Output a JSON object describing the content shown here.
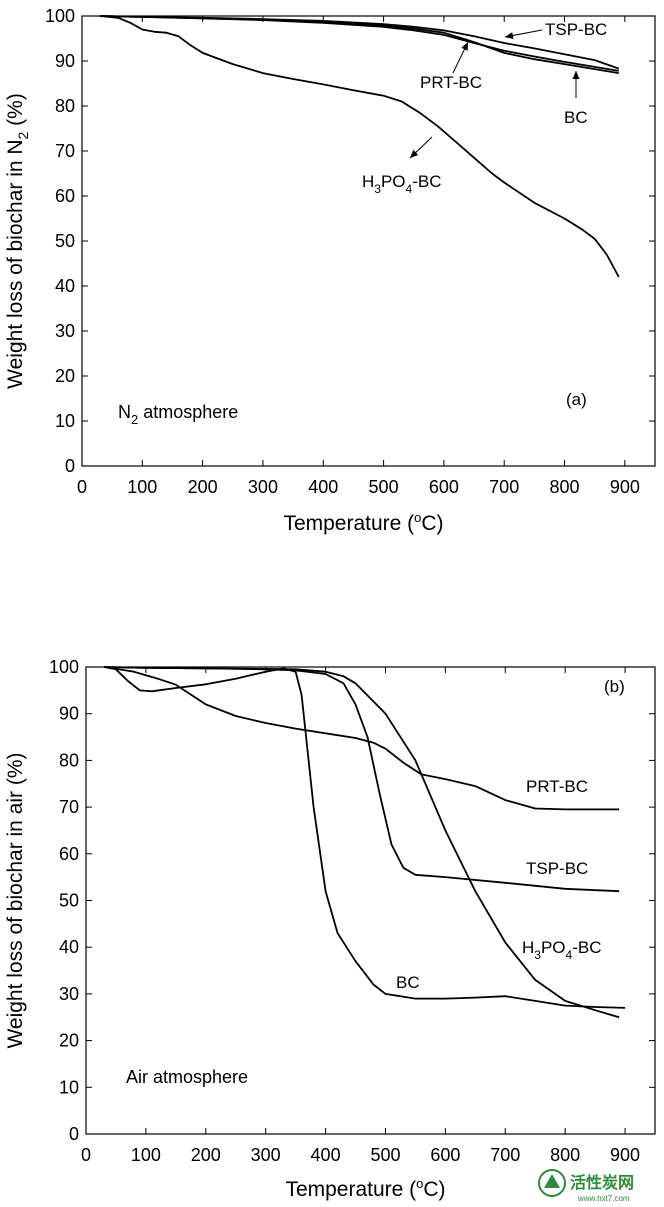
{
  "chart_data": [
    {
      "type": "line",
      "panel_label": "(a)",
      "atmosphere": "N",
      "atmosphere_sub": "2",
      "atmosphere_rest": " atmosphere",
      "xlabel": "Temperature (",
      "xlabel_sup": "o",
      "xlabel_end": "C)",
      "ylabel": "Weight loss of biochar in N",
      "ylabel_sub": "2",
      "ylabel_end": " (%)",
      "xlim": [
        0,
        950
      ],
      "ylim": [
        0,
        100
      ],
      "xticks": [
        0,
        100,
        200,
        300,
        400,
        500,
        600,
        700,
        800,
        900
      ],
      "yticks": [
        0,
        10,
        20,
        30,
        40,
        50,
        60,
        70,
        80,
        90,
        100
      ],
      "series": [
        {
          "name": "TSP-BC",
          "x": [
            30,
            100,
            200,
            300,
            400,
            500,
            550,
            600,
            650,
            700,
            750,
            800,
            850,
            890
          ],
          "y": [
            100,
            99.8,
            99.6,
            99.3,
            98.9,
            98.2,
            97.6,
            96.8,
            95.5,
            94,
            92.8,
            91.5,
            90.2,
            88.3
          ]
        },
        {
          "name": "PRT-BC",
          "x": [
            30,
            100,
            200,
            300,
            400,
            500,
            550,
            600,
            650,
            700,
            750,
            800,
            850,
            890
          ],
          "y": [
            100,
            99.8,
            99.5,
            99.1,
            98.5,
            97.6,
            96.8,
            95.8,
            94,
            92.3,
            91,
            89.8,
            88.7,
            87.8
          ]
        },
        {
          "name": "BC",
          "x": [
            30,
            100,
            200,
            300,
            400,
            500,
            550,
            600,
            650,
            700,
            750,
            800,
            850,
            890
          ],
          "y": [
            100,
            99.8,
            99.5,
            99.2,
            98.7,
            97.9,
            97.2,
            96.3,
            94.2,
            91.8,
            90.4,
            89.3,
            88.2,
            87.3
          ]
        },
        {
          "name": "H",
          "x": [
            30,
            60,
            80,
            100,
            120,
            140,
            160,
            180,
            200,
            250,
            300,
            350,
            400,
            450,
            500,
            530,
            560,
            590,
            620,
            650,
            680,
            700,
            750,
            800,
            830,
            850,
            870,
            890
          ],
          "y": [
            100,
            99.6,
            98.5,
            97,
            96.5,
            96.3,
            95.5,
            93.5,
            91.8,
            89.3,
            87.3,
            86,
            84.8,
            83.5,
            82.3,
            81,
            78.5,
            75.5,
            72,
            68.5,
            65,
            63,
            58.5,
            55,
            52.5,
            50.5,
            47,
            42
          ]
        }
      ],
      "labels": [
        {
          "text": "TSP-BC"
        },
        {
          "text": "PRT-BC"
        },
        {
          "text": "BC"
        },
        {
          "text": "H",
          "sub1": "3",
          "mid": "PO",
          "sub2": "4",
          "end": "-BC"
        }
      ]
    },
    {
      "type": "line",
      "panel_label": "(b)",
      "atmosphere": "Air atmosphere",
      "xlabel": "Temperature (",
      "xlabel_sup": "o",
      "xlabel_end": "C)",
      "ylabel": "Weight loss of biochar in air (%)",
      "xlim": [
        0,
        950
      ],
      "ylim": [
        0,
        100
      ],
      "xticks": [
        0,
        100,
        200,
        300,
        400,
        500,
        600,
        700,
        800,
        900
      ],
      "yticks": [
        0,
        10,
        20,
        30,
        40,
        50,
        60,
        70,
        80,
        90,
        100
      ],
      "series": [
        {
          "name": "PRT-BC",
          "x": [
            30,
            80,
            120,
            150,
            200,
            250,
            300,
            350,
            400,
            450,
            480,
            500,
            530,
            560,
            600,
            650,
            700,
            750,
            800,
            850,
            890
          ],
          "y": [
            100,
            99,
            97.5,
            96.2,
            92,
            89.5,
            88,
            86.8,
            85.8,
            84.8,
            83.8,
            82.5,
            79.5,
            77,
            76,
            74.5,
            71.5,
            69.7,
            69.5,
            69.5,
            69.5
          ]
        },
        {
          "name": "TSP-BC",
          "x": [
            30,
            100,
            200,
            300,
            350,
            400,
            430,
            450,
            470,
            490,
            510,
            530,
            550,
            600,
            700,
            800,
            890
          ],
          "y": [
            100,
            99.8,
            99.7,
            99.5,
            99.3,
            98.5,
            96.5,
            92,
            85,
            73,
            62,
            57,
            55.5,
            55,
            53.8,
            52.5,
            52
          ]
        },
        {
          "name": "H",
          "x": [
            30,
            100,
            200,
            300,
            350,
            400,
            430,
            450,
            500,
            550,
            600,
            650,
            700,
            750,
            800,
            850,
            890
          ],
          "y": [
            100,
            99.8,
            99.7,
            99.6,
            99.5,
            99,
            98,
            96.5,
            90,
            80,
            65,
            52,
            41,
            33,
            28.5,
            26.5,
            25
          ]
        },
        {
          "name": "BC",
          "x": [
            30,
            50,
            70,
            90,
            110,
            150,
            200,
            250,
            300,
            330,
            350,
            360,
            370,
            380,
            400,
            420,
            450,
            480,
            500,
            550,
            600,
            650,
            700,
            750,
            800,
            850,
            900
          ],
          "y": [
            100,
            99.5,
            97,
            95,
            94.8,
            95.5,
            96.3,
            97.5,
            99,
            99.7,
            99,
            94,
            82,
            70,
            52,
            43,
            37,
            32,
            30,
            29,
            29,
            29.2,
            29.5,
            28.5,
            27.5,
            27.2,
            27
          ]
        }
      ],
      "labels": [
        {
          "text": "PRT-BC"
        },
        {
          "text": "TSP-BC"
        },
        {
          "text": "H",
          "sub1": "3",
          "mid": "PO",
          "sub2": "4",
          "end": "-BC"
        },
        {
          "text": "BC"
        }
      ]
    }
  ],
  "watermark": {
    "text": "活性炭网",
    "url": "www.hxt7.com",
    "color": "#2e8b3a"
  }
}
